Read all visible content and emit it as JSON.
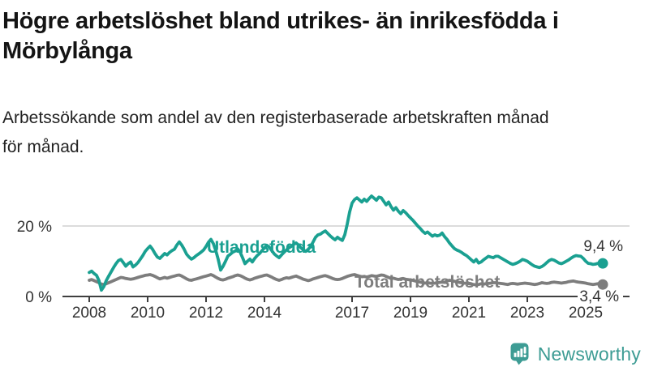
{
  "header": {
    "title": "Högre arbetslöshet bland utrikes- än inrikesfödda i Mörbylånga",
    "subtitle": "Arbetssökande som andel av den registerbaserade arbetskraften månad för månad."
  },
  "footer": {
    "brand": "Newsworthy",
    "logo_icon": "bar-chart-speech-bubble-icon"
  },
  "colors": {
    "foreign_born_line": "#1AA091",
    "total_line": "#7D7D7D",
    "axis": "#3F3F3F",
    "gridline": "#DCDCDC",
    "brand_teal": "#3D9C94",
    "text": "#333333"
  },
  "chart_data": {
    "type": "line",
    "x_unit": "month",
    "x_start": "2008-01",
    "x_end": "2025-08",
    "x_tick_labels": [
      "2008",
      "2010",
      "2012",
      "2014",
      "2017",
      "2019",
      "2021",
      "2023",
      "2025"
    ],
    "y_tick_labels": [
      "0 %",
      "20 %"
    ],
    "ylim": [
      0,
      34
    ],
    "grid": "single horizontal gridline at 20 %",
    "legend": "inline labels on lines, end-value labels at right",
    "series": [
      {
        "name": "Utlandsfödda",
        "color": "#1AA091",
        "end_label": "9,4 %",
        "end_value": 9.4,
        "values": [
          6.8,
          7.2,
          6.5,
          6,
          4.5,
          1.8,
          2.8,
          4.5,
          5.8,
          7,
          8.2,
          9.3,
          10.2,
          10.5,
          9.6,
          8.6,
          9.3,
          9.8,
          8.4,
          8.9,
          9.6,
          10.6,
          11.6,
          12.8,
          13.6,
          14.3,
          13.4,
          12.2,
          11.2,
          10.8,
          11.5,
          12.2,
          11.8,
          12.5,
          13,
          13.4,
          14.6,
          15.5,
          14.6,
          13.4,
          12,
          11.2,
          10.6,
          11,
          11.6,
          12.1,
          12.6,
          13.2,
          14.2,
          15.4,
          16.2,
          15,
          13,
          10.5,
          7.5,
          8.6,
          10,
          11.5,
          12,
          12.6,
          12.9,
          13.5,
          12.6,
          11,
          9.3,
          10,
          10.6,
          9.8,
          10.8,
          11.6,
          12.2,
          13,
          13.8,
          14.5,
          14,
          13,
          12.1,
          11.5,
          11,
          11.8,
          12.5,
          13.2,
          13.8,
          14.2,
          14.8,
          15.2,
          14.6,
          13.8,
          13.2,
          12.8,
          13.4,
          14.2,
          15.5,
          16.8,
          17.5,
          17.7,
          18.2,
          18.6,
          17.9,
          17.2,
          16.6,
          16.1,
          16.8,
          16.3,
          15.9,
          17.5,
          20.5,
          24,
          26.5,
          27.5,
          28,
          27.4,
          26.8,
          27.6,
          27,
          27.8,
          28.5,
          27.9,
          27.3,
          28.2,
          28,
          27,
          26,
          26.8,
          25.5,
          24.5,
          25.2,
          24.2,
          23.5,
          24.4,
          23.8,
          23,
          22.3,
          21.6,
          20.8,
          20,
          19.3,
          18.5,
          17.9,
          18.3,
          17.7,
          17.1,
          17.5,
          17.2,
          17.4,
          18,
          17,
          16.2,
          15.2,
          14.4,
          13.6,
          13.2,
          12.9,
          12.5,
          12,
          11.6,
          11,
          10.4,
          9.8,
          10.5,
          9.5,
          9.8,
          10.4,
          10.9,
          11.4,
          11.2,
          11,
          11.4,
          11.4,
          11,
          10.6,
          10.2,
          9.8,
          9.4,
          9.1,
          9.3,
          9.6,
          10,
          10.5,
          10.3,
          10,
          9.5,
          9,
          8.6,
          8.4,
          8.2,
          8.5,
          9,
          9.6,
          10.2,
          10.5,
          10.3,
          9.9,
          9.5,
          9.3,
          9.6,
          10,
          10.4,
          10.9,
          11.3,
          11.6,
          11.5,
          11.4,
          10.8,
          10,
          9.4,
          9.3,
          9.1,
          9.2,
          9.4,
          9.5,
          9.4
        ]
      },
      {
        "name": "Total arbetslöshet",
        "color": "#7D7D7D",
        "end_label": "3,4 %",
        "end_value": 3.4,
        "values": [
          4.6,
          4.8,
          4.5,
          4.2,
          3.9,
          3.5,
          3.4,
          3.6,
          3.9,
          4.2,
          4.5,
          4.8,
          5.1,
          5.4,
          5.3,
          5.1,
          5,
          4.9,
          5,
          5.2,
          5.4,
          5.6,
          5.8,
          6,
          6.1,
          6.2,
          6,
          5.7,
          5.3,
          5,
          5.2,
          5.4,
          5.2,
          5.4,
          5.6,
          5.8,
          6,
          6.1,
          5.8,
          5.4,
          5,
          4.7,
          4.6,
          4.8,
          5,
          5.2,
          5.4,
          5.6,
          5.8,
          6,
          6.2,
          5.9,
          5.5,
          5.1,
          4.8,
          4.7,
          4.9,
          5.2,
          5.4,
          5.6,
          5.9,
          6.1,
          5.9,
          5.6,
          5.2,
          4.9,
          4.7,
          4.9,
          5.2,
          5.4,
          5.6,
          5.8,
          6,
          6.1,
          5.8,
          5.5,
          5.1,
          4.8,
          4.6,
          4.8,
          5.1,
          5.3,
          5.2,
          5.4,
          5.6,
          5.8,
          5.5,
          5.2,
          4.9,
          4.7,
          4.5,
          4.7,
          5,
          5.2,
          5.4,
          5.6,
          5.8,
          5.9,
          5.7,
          5.4,
          5.1,
          4.9,
          4.8,
          4.9,
          5.1,
          5.4,
          5.7,
          5.9,
          6.1,
          6.2,
          6,
          5.8,
          5.6,
          5.7,
          5.5,
          5.7,
          5.9,
          5.8,
          5.7,
          5.9,
          6.1,
          6,
          5.7,
          5.4,
          5.1,
          5.2,
          5,
          4.8,
          5,
          5.1,
          4.9,
          4.8,
          4.7,
          4.6,
          4.4,
          4.2,
          4.1,
          3.9,
          3.8,
          3.9,
          3.8,
          3.7,
          3.8,
          3.9,
          4,
          4.1,
          4,
          4.4,
          4.6,
          4.5,
          4.3,
          4.2,
          4,
          3.9,
          3.8,
          3.7,
          3.6,
          3.5,
          3.4,
          3.3,
          3.4,
          3.6,
          3.5,
          3.6,
          3.7,
          3.8,
          3.9,
          3.9,
          3.8,
          3.7,
          3.6,
          3.5,
          3.4,
          3.6,
          3.7,
          3.6,
          3.5,
          3.6,
          3.7,
          3.8,
          3.7,
          3.6,
          3.5,
          3.4,
          3.5,
          3.7,
          3.9,
          3.8,
          3.7,
          3.8,
          4,
          4.1,
          4,
          3.9,
          3.8,
          3.9,
          4,
          4.2,
          4.3,
          4.4,
          4.2,
          4.1,
          4,
          3.9,
          3.8,
          3.6,
          3.5,
          3.4,
          3.5,
          3.6,
          3.5,
          3.4
        ]
      }
    ]
  }
}
